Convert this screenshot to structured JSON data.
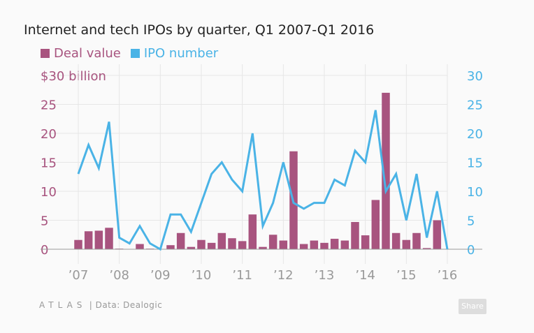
{
  "chart_data": {
    "type": "bar+line",
    "title": "Internet and tech IPOs by quarter, Q1 2007-Q1 2016",
    "legend": [
      {
        "name": "Deal value",
        "color": "#a8547f"
      },
      {
        "name": "IPO number",
        "color": "#4ab3e6"
      }
    ],
    "legend_placement": "top-left",
    "x_tick_labels": [
      "’07",
      "’08",
      "’09",
      "’10",
      "’11",
      "’12",
      "’13",
      "’14",
      "’15",
      "’16"
    ],
    "left_axis": {
      "ticks": [
        "$30 billion",
        "25",
        "20",
        "15",
        "10",
        "5",
        "0"
      ],
      "range": [
        0,
        30
      ],
      "color": "#a8547f"
    },
    "right_axis": {
      "ticks": [
        "30",
        "25",
        "20",
        "15",
        "10",
        "5",
        "0"
      ],
      "range": [
        0,
        30
      ],
      "color": "#4ab3e6"
    },
    "grid": true,
    "series": [
      {
        "name": "Deal value",
        "kind": "bar",
        "values": [
          1.6,
          3.1,
          3.2,
          3.7,
          0.1,
          0,
          0.9,
          0.1,
          0,
          0.7,
          2.8,
          0.4,
          1.6,
          1.1,
          2.8,
          1.9,
          1.4,
          6.0,
          0.4,
          2.5,
          1.5,
          16.9,
          0.9,
          1.5,
          1.1,
          1.8,
          1.5,
          4.7,
          2.4,
          8.5,
          27.0,
          2.8,
          1.6,
          2.8,
          0.2,
          5.0,
          0
        ]
      },
      {
        "name": "IPO number",
        "kind": "line",
        "values": [
          13,
          18,
          14,
          22,
          2,
          1,
          4,
          1,
          0,
          6,
          6,
          3,
          8,
          13,
          15,
          12,
          10,
          20,
          4,
          8,
          15,
          8,
          7,
          8,
          8,
          12,
          11,
          17,
          15,
          24,
          10,
          13,
          5,
          13,
          2,
          10,
          0
        ]
      }
    ]
  },
  "footer": {
    "logo": "ATLAS",
    "source": "Data: Dealogic",
    "share": "Share"
  }
}
